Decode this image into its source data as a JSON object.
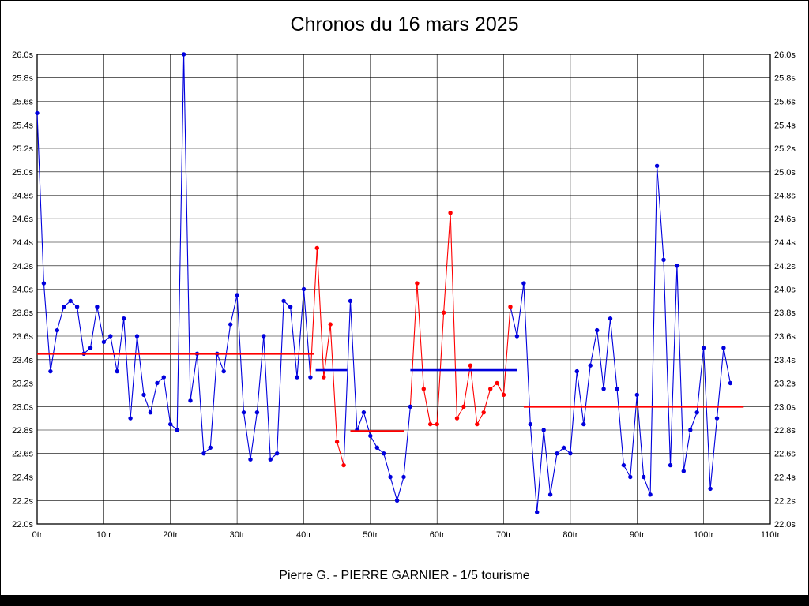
{
  "chart_data": {
    "type": "line",
    "title": "Chronos du 16 mars 2025",
    "subtitle": "Pierre G. - PIERRE GARNIER - 1/5 tourisme",
    "xlabel": "",
    "ylabel": "",
    "x_unit": "tr",
    "y_unit": "s",
    "xlim": [
      0,
      110
    ],
    "ylim": [
      22.0,
      26.0
    ],
    "grid": true,
    "legend": "none",
    "colors": {
      "blue": "#0000dd",
      "red": "#ff0000"
    },
    "x_ticks": [
      {
        "v": 0,
        "label": "0tr"
      },
      {
        "v": 10,
        "label": "10tr"
      },
      {
        "v": 20,
        "label": "20tr"
      },
      {
        "v": 30,
        "label": "30tr"
      },
      {
        "v": 40,
        "label": "40tr"
      },
      {
        "v": 50,
        "label": "50tr"
      },
      {
        "v": 60,
        "label": "60tr"
      },
      {
        "v": 70,
        "label": "70tr"
      },
      {
        "v": 80,
        "label": "80tr"
      },
      {
        "v": 90,
        "label": "90tr"
      },
      {
        "v": 100,
        "label": "100tr"
      },
      {
        "v": 110,
        "label": "110tr"
      }
    ],
    "y_ticks": [
      {
        "v": 26.0,
        "label": "26.0s"
      },
      {
        "v": 25.8,
        "label": "25.8s"
      },
      {
        "v": 25.6,
        "label": "25.6s"
      },
      {
        "v": 25.4,
        "label": "25.4s"
      },
      {
        "v": 25.2,
        "label": "25.2s"
      },
      {
        "v": 25.0,
        "label": "25.0s"
      },
      {
        "v": 24.8,
        "label": "24.8s"
      },
      {
        "v": 24.6,
        "label": "24.6s"
      },
      {
        "v": 24.4,
        "label": "24.4s"
      },
      {
        "v": 24.2,
        "label": "24.2s"
      },
      {
        "v": 24.0,
        "label": "24.0s"
      },
      {
        "v": 23.8,
        "label": "23.8s"
      },
      {
        "v": 23.6,
        "label": "23.6s"
      },
      {
        "v": 23.4,
        "label": "23.4s"
      },
      {
        "v": 23.2,
        "label": "23.2s"
      },
      {
        "v": 23.0,
        "label": "23.0s"
      },
      {
        "v": 22.8,
        "label": "22.8s"
      },
      {
        "v": 22.6,
        "label": "22.6s"
      },
      {
        "v": 22.4,
        "label": "22.4s"
      },
      {
        "v": 22.2,
        "label": "22.2s"
      },
      {
        "v": 22.0,
        "label": "22.0s"
      }
    ],
    "laps": [
      [
        0,
        25.5,
        "b"
      ],
      [
        1,
        24.05,
        "b"
      ],
      [
        2,
        23.3,
        "b"
      ],
      [
        3,
        23.65,
        "b"
      ],
      [
        4,
        23.85,
        "b"
      ],
      [
        5,
        23.9,
        "b"
      ],
      [
        6,
        23.85,
        "b"
      ],
      [
        7,
        23.45,
        "b"
      ],
      [
        8,
        23.5,
        "b"
      ],
      [
        9,
        23.85,
        "b"
      ],
      [
        10,
        23.55,
        "b"
      ],
      [
        11,
        23.6,
        "b"
      ],
      [
        12,
        23.3,
        "b"
      ],
      [
        13,
        23.75,
        "b"
      ],
      [
        14,
        22.9,
        "b"
      ],
      [
        15,
        23.6,
        "b"
      ],
      [
        16,
        23.1,
        "b"
      ],
      [
        17,
        22.95,
        "b"
      ],
      [
        18,
        23.2,
        "b"
      ],
      [
        19,
        23.25,
        "b"
      ],
      [
        20,
        22.85,
        "b"
      ],
      [
        21,
        22.8,
        "b"
      ],
      [
        22,
        26.0,
        "b"
      ],
      [
        23,
        23.05,
        "b"
      ],
      [
        24,
        23.45,
        "b"
      ],
      [
        25,
        22.6,
        "b"
      ],
      [
        26,
        22.65,
        "b"
      ],
      [
        27,
        23.45,
        "b"
      ],
      [
        28,
        23.3,
        "b"
      ],
      [
        29,
        23.7,
        "b"
      ],
      [
        30,
        23.95,
        "b"
      ],
      [
        31,
        22.95,
        "b"
      ],
      [
        32,
        22.55,
        "b"
      ],
      [
        33,
        22.95,
        "b"
      ],
      [
        34,
        23.6,
        "b"
      ],
      [
        35,
        22.55,
        "b"
      ],
      [
        36,
        22.6,
        "b"
      ],
      [
        37,
        23.9,
        "b"
      ],
      [
        38,
        23.85,
        "b"
      ],
      [
        39,
        23.25,
        "b"
      ],
      [
        40,
        24.0,
        "b"
      ],
      [
        41,
        23.25,
        "b"
      ],
      [
        42,
        24.35,
        "r"
      ],
      [
        43,
        23.25,
        "r"
      ],
      [
        44,
        23.7,
        "r"
      ],
      [
        45,
        22.7,
        "r"
      ],
      [
        46,
        22.5,
        "r"
      ],
      [
        47,
        23.9,
        "b"
      ],
      [
        48,
        22.8,
        "b"
      ],
      [
        49,
        22.95,
        "b"
      ],
      [
        50,
        22.75,
        "b"
      ],
      [
        51,
        22.65,
        "b"
      ],
      [
        52,
        22.6,
        "b"
      ],
      [
        53,
        22.4,
        "b"
      ],
      [
        54,
        22.2,
        "b"
      ],
      [
        55,
        22.4,
        "b"
      ],
      [
        56,
        23.0,
        "b"
      ],
      [
        57,
        24.05,
        "r"
      ],
      [
        58,
        23.15,
        "r"
      ],
      [
        59,
        22.85,
        "r"
      ],
      [
        60,
        22.85,
        "r"
      ],
      [
        61,
        23.8,
        "r"
      ],
      [
        62,
        24.65,
        "r"
      ],
      [
        63,
        22.9,
        "r"
      ],
      [
        64,
        23.0,
        "r"
      ],
      [
        65,
        23.35,
        "r"
      ],
      [
        66,
        22.85,
        "r"
      ],
      [
        67,
        22.95,
        "r"
      ],
      [
        68,
        23.15,
        "r"
      ],
      [
        69,
        23.2,
        "r"
      ],
      [
        70,
        23.1,
        "r"
      ],
      [
        71,
        23.85,
        "r"
      ],
      [
        72,
        23.6,
        "b"
      ],
      [
        73,
        24.05,
        "b"
      ],
      [
        74,
        22.85,
        "b"
      ],
      [
        75,
        22.1,
        "b"
      ],
      [
        76,
        22.8,
        "b"
      ],
      [
        77,
        22.25,
        "b"
      ],
      [
        78,
        22.6,
        "b"
      ],
      [
        79,
        22.65,
        "b"
      ],
      [
        80,
        22.6,
        "b"
      ],
      [
        81,
        23.3,
        "b"
      ],
      [
        82,
        22.85,
        "b"
      ],
      [
        83,
        23.35,
        "b"
      ],
      [
        84,
        23.65,
        "b"
      ],
      [
        85,
        23.15,
        "b"
      ],
      [
        86,
        23.75,
        "b"
      ],
      [
        87,
        23.15,
        "b"
      ],
      [
        88,
        22.5,
        "b"
      ],
      [
        89,
        22.4,
        "b"
      ],
      [
        90,
        23.1,
        "b"
      ],
      [
        91,
        22.4,
        "b"
      ],
      [
        92,
        22.25,
        "b"
      ],
      [
        93,
        25.05,
        "b"
      ],
      [
        94,
        24.25,
        "b"
      ],
      [
        95,
        22.5,
        "b"
      ],
      [
        96,
        24.2,
        "b"
      ],
      [
        97,
        22.45,
        "b"
      ],
      [
        98,
        22.8,
        "b"
      ],
      [
        99,
        22.95,
        "b"
      ],
      [
        100,
        23.5,
        "b"
      ],
      [
        101,
        22.3,
        "b"
      ],
      [
        102,
        22.9,
        "b"
      ],
      [
        103,
        23.5,
        "b"
      ],
      [
        104,
        23.2,
        "b"
      ]
    ],
    "avg_lines": [
      {
        "x1": 0,
        "x2": 41.5,
        "y": 23.45,
        "c": "r"
      },
      {
        "x1": 41.8,
        "x2": 46.5,
        "y": 23.31,
        "c": "b"
      },
      {
        "x1": 47,
        "x2": 55,
        "y": 22.79,
        "c": "r"
      },
      {
        "x1": 56,
        "x2": 72,
        "y": 23.31,
        "c": "b"
      },
      {
        "x1": 73,
        "x2": 106,
        "y": 23.0,
        "c": "r"
      }
    ]
  }
}
